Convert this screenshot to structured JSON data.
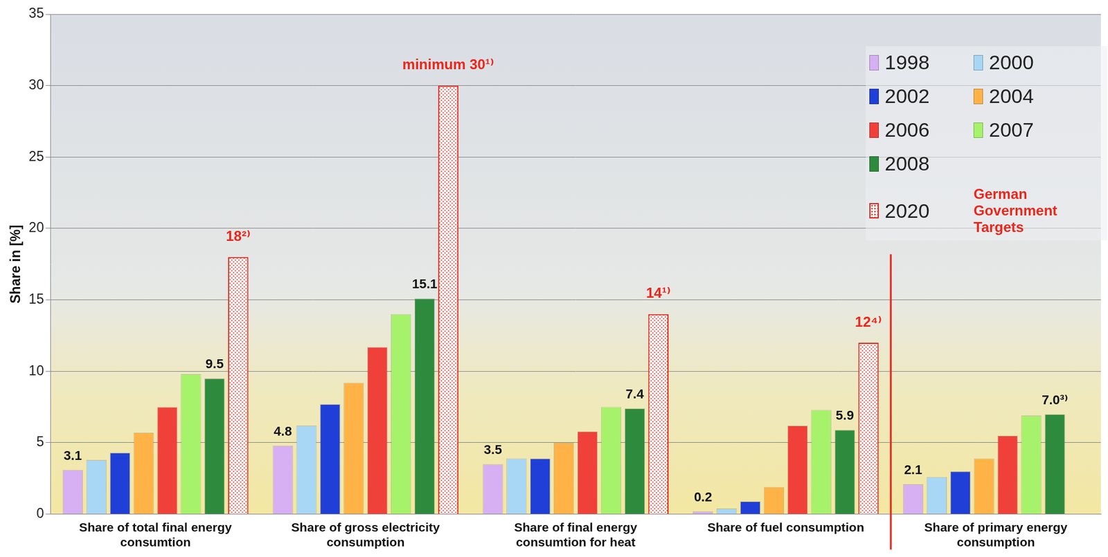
{
  "chart_data": {
    "type": "bar",
    "categories": [
      "Share of total final energy consumtion",
      "Share of gross electricity consumption",
      "Share of final energy consumtion for heat",
      "Share of fuel consumption",
      "Share of primary energy consumption"
    ],
    "series": [
      {
        "name": "1998",
        "color": "#d6b0f2",
        "values": [
          3.1,
          4.8,
          3.5,
          0.2,
          2.1
        ],
        "value_labels": [
          "3.1",
          "4.8",
          "3.5",
          "0.2",
          "2.1"
        ]
      },
      {
        "name": "2000",
        "color": "#a8d6f5",
        "values": [
          3.8,
          6.2,
          3.9,
          0.4,
          2.6
        ],
        "value_labels": [
          null,
          null,
          null,
          null,
          null
        ]
      },
      {
        "name": "2002",
        "color": "#1f3fd6",
        "values": [
          4.3,
          7.7,
          3.9,
          0.9,
          3.0
        ],
        "value_labels": [
          null,
          null,
          null,
          null,
          null
        ]
      },
      {
        "name": "2004",
        "color": "#ffb347",
        "values": [
          5.7,
          9.2,
          5.0,
          1.9,
          3.9
        ],
        "value_labels": [
          null,
          null,
          null,
          null,
          null
        ]
      },
      {
        "name": "2006",
        "color": "#f0403a",
        "values": [
          7.5,
          11.7,
          5.8,
          6.2,
          5.5
        ],
        "value_labels": [
          null,
          null,
          null,
          null,
          null
        ]
      },
      {
        "name": "2007",
        "color": "#a6f26a",
        "values": [
          9.8,
          14.0,
          7.5,
          7.3,
          6.9
        ],
        "value_labels": [
          null,
          null,
          null,
          null,
          null
        ]
      },
      {
        "name": "2008",
        "color": "#2e8b3e",
        "values": [
          9.5,
          15.1,
          7.4,
          5.9,
          7.0
        ],
        "value_labels": [
          "9.5",
          "15.1",
          "7.4",
          "5.9",
          "7.0³⁾"
        ]
      },
      {
        "name": "2020",
        "color": "#e8271b",
        "values": [
          18,
          30,
          14,
          12,
          null
        ],
        "value_labels": [
          "18²⁾",
          "minimum 30¹⁾",
          "14¹⁾",
          "12⁴⁾",
          null
        ]
      }
    ],
    "annotation": "German Government Targets",
    "ylabel": "Share in [%]",
    "ylim": [
      0,
      35
    ],
    "yticks": [
      0,
      5,
      10,
      15,
      20,
      25,
      30,
      35
    ],
    "grid": true,
    "legend": "upper right",
    "data_labels": true
  }
}
